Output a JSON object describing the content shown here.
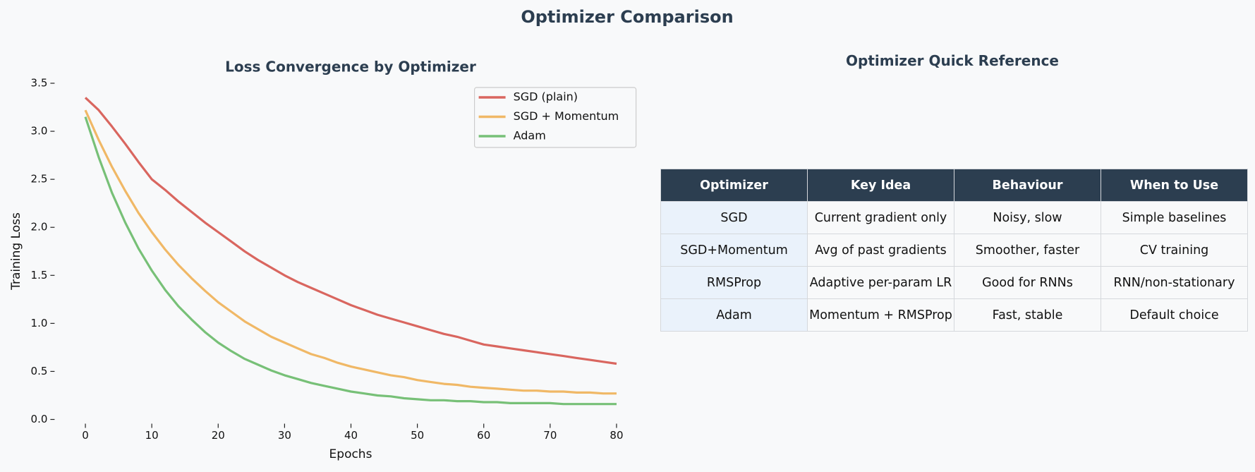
{
  "title": "Optimizer Comparison",
  "chart_data": {
    "type": "line",
    "title": "Loss Convergence by Optimizer",
    "x_label": "Epochs",
    "y_label": "Training Loss",
    "x": [
      0,
      2,
      4,
      6,
      8,
      10,
      12,
      14,
      16,
      18,
      20,
      22,
      24,
      26,
      28,
      30,
      32,
      34,
      36,
      38,
      40,
      42,
      44,
      46,
      48,
      50,
      52,
      54,
      56,
      58,
      60,
      62,
      64,
      66,
      68,
      70,
      72,
      74,
      76,
      78,
      80
    ],
    "series": [
      {
        "name": "SGD (plain)",
        "color": "#d9665f",
        "values": [
          3.35,
          3.22,
          3.05,
          2.87,
          2.68,
          2.5,
          2.39,
          2.27,
          2.16,
          2.05,
          1.95,
          1.85,
          1.75,
          1.66,
          1.58,
          1.5,
          1.43,
          1.37,
          1.31,
          1.25,
          1.19,
          1.14,
          1.09,
          1.05,
          1.01,
          0.97,
          0.93,
          0.89,
          0.86,
          0.82,
          0.78,
          0.76,
          0.74,
          0.72,
          0.7,
          0.68,
          0.66,
          0.64,
          0.62,
          0.6,
          0.58
        ]
      },
      {
        "name": "SGD + Momentum",
        "color": "#f0b866",
        "values": [
          3.22,
          2.91,
          2.63,
          2.38,
          2.15,
          1.95,
          1.77,
          1.61,
          1.47,
          1.34,
          1.22,
          1.12,
          1.02,
          0.94,
          0.86,
          0.8,
          0.74,
          0.68,
          0.64,
          0.59,
          0.55,
          0.52,
          0.49,
          0.46,
          0.44,
          0.41,
          0.39,
          0.37,
          0.36,
          0.34,
          0.33,
          0.32,
          0.31,
          0.3,
          0.3,
          0.29,
          0.29,
          0.28,
          0.28,
          0.27,
          0.27
        ]
      },
      {
        "name": "Adam",
        "color": "#77c077",
        "values": [
          3.15,
          2.73,
          2.36,
          2.05,
          1.78,
          1.55,
          1.35,
          1.18,
          1.04,
          0.91,
          0.8,
          0.71,
          0.63,
          0.57,
          0.51,
          0.46,
          0.42,
          0.38,
          0.35,
          0.32,
          0.29,
          0.27,
          0.25,
          0.24,
          0.22,
          0.21,
          0.2,
          0.2,
          0.19,
          0.19,
          0.18,
          0.18,
          0.17,
          0.17,
          0.17,
          0.17,
          0.16,
          0.16,
          0.16,
          0.16,
          0.16
        ]
      }
    ],
    "xlim": [
      -4,
      84
    ],
    "ylim": [
      0,
      3.5
    ],
    "xticks": [
      0,
      10,
      20,
      30,
      40,
      50,
      60,
      70,
      80
    ],
    "yticks": [
      {
        "value": 0,
        "label": "0.0"
      },
      {
        "value": 0.5,
        "label": "0.5"
      },
      {
        "value": 1,
        "label": "1.0"
      },
      {
        "value": 1.5,
        "label": "1.5"
      },
      {
        "value": 2,
        "label": "2.0"
      },
      {
        "value": 2.5,
        "label": "2.5"
      },
      {
        "value": 3,
        "label": "3.0"
      },
      {
        "value": 3.5,
        "label": "3.5"
      }
    ],
    "legend": "upper right"
  },
  "table": {
    "title": "Optimizer Quick Reference",
    "header": [
      "Optimizer",
      "Key Idea",
      "Behaviour",
      "When to Use"
    ],
    "rows": [
      [
        "SGD",
        "Current gradient only",
        "Noisy, slow",
        "Simple baselines"
      ],
      [
        "SGD+Momentum",
        "Avg of past gradients",
        "Smoother, faster",
        "CV training"
      ],
      [
        "RMSProp",
        "Adaptive per-param LR",
        "Good for RNNs",
        "RNN/non-stationary"
      ],
      [
        "Adam",
        "Momentum + RMSProp",
        "Fast, stable",
        "Default choice"
      ]
    ]
  }
}
